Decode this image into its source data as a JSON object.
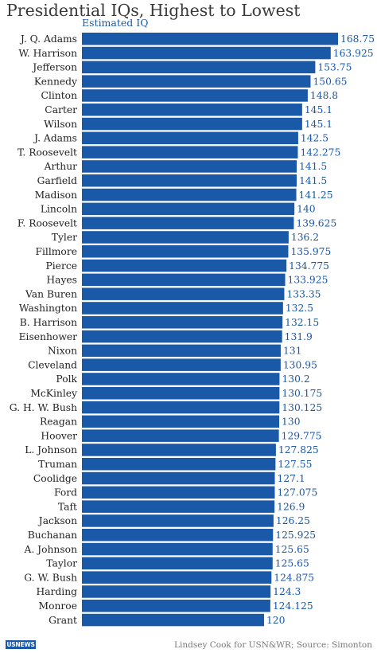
{
  "chart_data": {
    "type": "bar",
    "orientation": "horizontal",
    "title": "Presidential IQs, Highest to Lowest",
    "subtitle": "Estimated IQ",
    "categories": [
      "J. Q. Adams",
      "W. Harrison",
      "Jefferson",
      "Kennedy",
      "Clinton",
      "Carter",
      "Wilson",
      "J. Adams",
      "T. Roosevelt",
      "Arthur",
      "Garfield",
      "Madison",
      "Lincoln",
      "F. Roosevelt",
      "Tyler",
      "Fillmore",
      "Pierce",
      "Hayes",
      "Van Buren",
      "Washington",
      "B. Harrison",
      "Eisenhower",
      "Nixon",
      "Cleveland",
      "Polk",
      "McKinley",
      "G. H. W. Bush",
      "Reagan",
      "Hoover",
      "L. Johnson",
      "Truman",
      "Coolidge",
      "Ford",
      "Taft",
      "Jackson",
      "Buchanan",
      "A. Johnson",
      "Taylor",
      "G. W. Bush",
      "Harding",
      "Monroe",
      "Grant"
    ],
    "values": [
      168.75,
      163.925,
      153.75,
      150.65,
      148.8,
      145.1,
      145.1,
      142.5,
      142.275,
      141.5,
      141.5,
      141.25,
      140,
      139.625,
      136.2,
      135.975,
      134.775,
      133.925,
      133.35,
      132.5,
      132.15,
      131.9,
      131,
      130.95,
      130.2,
      130.175,
      130.125,
      130,
      129.775,
      127.825,
      127.55,
      127.1,
      127.075,
      126.9,
      126.25,
      125.925,
      125.65,
      125.65,
      124.875,
      124.3,
      124.125,
      120
    ],
    "value_labels": [
      "168.75",
      "163.925",
      "153.75",
      "150.65",
      "148.8",
      "145.1",
      "145.1",
      "142.5",
      "142.275",
      "141.5",
      "141.5",
      "141.25",
      "140",
      "139.625",
      "136.2",
      "135.975",
      "134.775",
      "133.925",
      "133.35",
      "132.5",
      "132.15",
      "131.9",
      "131",
      "130.95",
      "130.2",
      "130.175",
      "130.125",
      "130",
      "129.775",
      "127.825",
      "127.55",
      "127.1",
      "127.075",
      "126.9",
      "126.25",
      "125.925",
      "125.65",
      "125.65",
      "124.875",
      "124.3",
      "124.125",
      "120"
    ],
    "bar_color": "#1a58a8",
    "grid": false,
    "legend": "none"
  },
  "footer": {
    "logo": "USNEWS",
    "credit": "Lindsey Cook for USN&WR; Source: Simonton"
  }
}
